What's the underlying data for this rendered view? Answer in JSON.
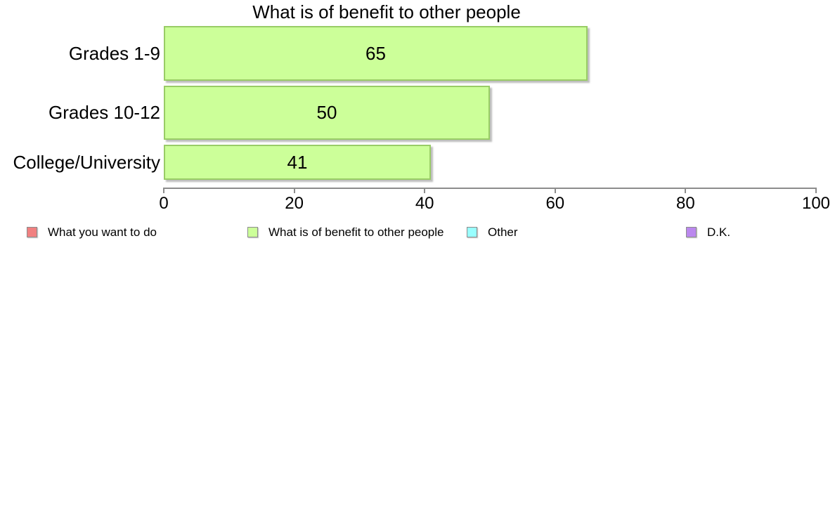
{
  "chart_data": {
    "type": "bar",
    "orientation": "horizontal",
    "title": "What is of benefit to other people",
    "categories": [
      "Grades 1-9",
      "Grades 10-12",
      "College/University"
    ],
    "values": [
      65,
      50,
      41
    ],
    "value_labels": [
      "65",
      "50",
      "41"
    ],
    "xlabel": "",
    "ylabel": "",
    "xlim": [
      0,
      100
    ],
    "x_ticks": [
      "0",
      "20",
      "40",
      "60",
      "80",
      "100"
    ],
    "grid": false,
    "background_color": "#ffffff",
    "series_color": "#ccff99",
    "series_border_color": "#99cc66",
    "legend_position": "bottom",
    "legend": [
      {
        "label": "What you want to do",
        "color": "#f08080"
      },
      {
        "label": "What is of benefit to other people",
        "color": "#ccff99"
      },
      {
        "label": "Other",
        "color": "#99ffff"
      },
      {
        "label": "D.K.",
        "color": "#bb88ee"
      }
    ]
  }
}
